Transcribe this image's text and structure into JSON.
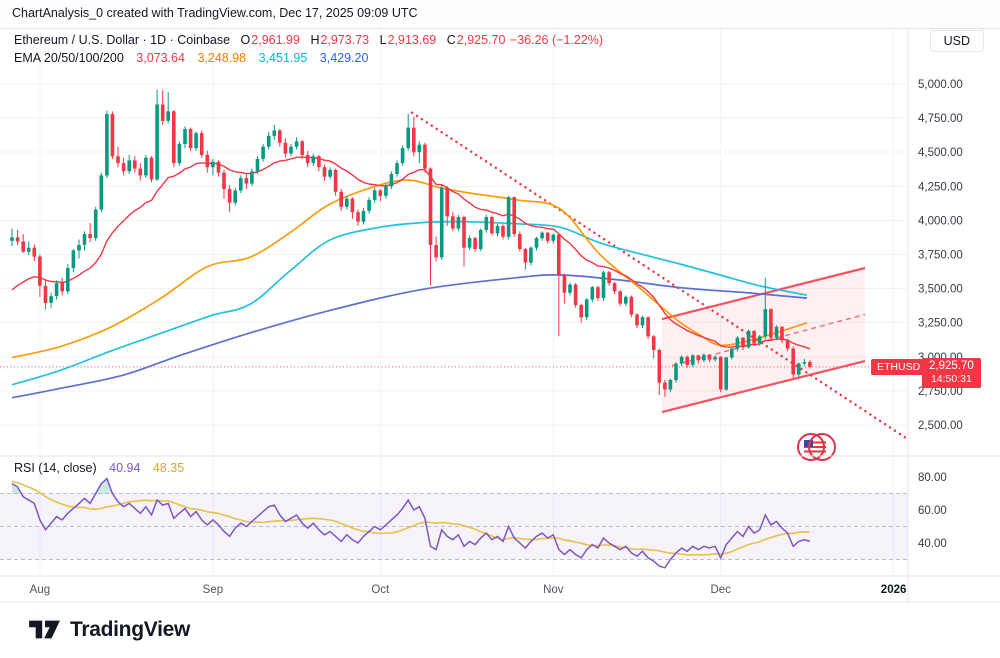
{
  "top_bar": {
    "title": "ChartAnalysis_0 created with TradingView.com, Dec 17, 2025 09:09 UTC"
  },
  "legend": {
    "symbol_line": "Ethereum / U.S. Dollar · 1D · Coinbase",
    "o_label": "O",
    "o": "2,961.99",
    "h_label": "H",
    "h": "2,973.73",
    "l_label": "L",
    "l": "2,913.69",
    "c_label": "C",
    "c": "2,925.70",
    "change": "−36.26 (−1.22%)"
  },
  "ema_legend": {
    "label": "EMA 20/50/100/200",
    "v20": "3,073.64",
    "v50": "3,248.98",
    "v100": "3,451.95",
    "v200": "3,429.20"
  },
  "rsi_legend": {
    "label": "RSI (14, close)",
    "value": "40.94",
    "ma": "48.35"
  },
  "axis": {
    "currency": "USD",
    "price_labels": [
      {
        "v": 5000,
        "t": "5,000.00"
      },
      {
        "v": 4750,
        "t": "4,750.00"
      },
      {
        "v": 4500,
        "t": "4,500.00"
      },
      {
        "v": 4250,
        "t": "4,250.00"
      },
      {
        "v": 4000,
        "t": "4,000.00"
      },
      {
        "v": 3750,
        "t": "3,750.00"
      },
      {
        "v": 3500,
        "t": "3,500.00"
      },
      {
        "v": 3250,
        "t": "3,250.00"
      },
      {
        "v": 3000,
        "t": "3,000.00"
      },
      {
        "v": 2750,
        "t": "2,750.00"
      },
      {
        "v": 2500,
        "t": "2,500.00"
      }
    ],
    "rsi_labels": [
      {
        "v": 80,
        "t": "80.00"
      },
      {
        "v": 60,
        "t": "60.00"
      },
      {
        "v": 40,
        "t": "40.00"
      }
    ],
    "months": [
      {
        "i": 5,
        "t": "Aug"
      },
      {
        "i": 36,
        "t": "Sep"
      },
      {
        "i": 66,
        "t": "Oct"
      },
      {
        "i": 97,
        "t": "Nov"
      },
      {
        "i": 127,
        "t": "Dec"
      },
      {
        "i": 158,
        "t": "2026",
        "b": 1
      }
    ]
  },
  "price_badge": {
    "symbol": "ETHUSD",
    "price": "2,925.70",
    "countdown": "14:50:31"
  },
  "footer": {
    "brand": "TradingView"
  },
  "colors": {
    "up": "#089981",
    "down": "#f23645",
    "ema20": "#f23645",
    "ema50": "#ff9800",
    "ema100": "#22c1dd",
    "ema200": "#5f6fd0",
    "rsi": "#7e57c2",
    "rsi_ma": "#e6c24a",
    "channel": "#f7525f",
    "channel_fill": "rgba(247,82,95,0.09)",
    "trend": "#f23645",
    "price_line": "#f23645",
    "grid": "#f0f3fa",
    "sep": "#e1e4ea",
    "axis_text": "#363a45",
    "month_text": "#51555e",
    "band": "rgba(126,87,194,0.08)",
    "dashed": "#a5a8b1",
    "over_fill": "rgba(8,153,129,0.22)"
  },
  "chart_data": {
    "type": "candlestick",
    "title": "Ethereum / U.S. Dollar · 1D · Coinbase",
    "ylim": [
      2500,
      5000
    ],
    "xlabels": [
      "Aug",
      "Sep",
      "Oct",
      "Nov",
      "Dec",
      "2026"
    ],
    "price_line": 2925.7,
    "ema20_period": 20,
    "ema20_seed": 3450,
    "candles": [
      [
        3850,
        3940,
        3810,
        3875
      ],
      [
        3875,
        3930,
        3820,
        3845
      ],
      [
        3845,
        3900,
        3760,
        3770
      ],
      [
        3770,
        3845,
        3745,
        3800
      ],
      [
        3800,
        3825,
        3700,
        3735
      ],
      [
        3735,
        3750,
        3440,
        3520
      ],
      [
        3520,
        3560,
        3350,
        3395
      ],
      [
        3395,
        3470,
        3360,
        3445
      ],
      [
        3445,
        3560,
        3420,
        3540
      ],
      [
        3540,
        3580,
        3450,
        3480
      ],
      [
        3480,
        3680,
        3460,
        3650
      ],
      [
        3650,
        3790,
        3620,
        3780
      ],
      [
        3780,
        3860,
        3720,
        3820
      ],
      [
        3820,
        3920,
        3780,
        3900
      ],
      [
        3900,
        3980,
        3840,
        3870
      ],
      [
        3870,
        4100,
        3850,
        4080
      ],
      [
        4080,
        4350,
        4060,
        4330
      ],
      [
        4330,
        4805,
        4310,
        4780
      ],
      [
        4780,
        4800,
        4450,
        4470
      ],
      [
        4470,
        4540,
        4390,
        4420
      ],
      [
        4420,
        4460,
        4330,
        4360
      ],
      [
        4360,
        4480,
        4340,
        4440
      ],
      [
        4440,
        4470,
        4350,
        4380
      ],
      [
        4380,
        4420,
        4290,
        4330
      ],
      [
        4330,
        4480,
        4310,
        4460
      ],
      [
        4460,
        4470,
        4280,
        4300
      ],
      [
        4300,
        4960,
        4290,
        4850
      ],
      [
        4850,
        4955,
        4700,
        4730
      ],
      [
        4730,
        4940,
        4710,
        4800
      ],
      [
        4800,
        4810,
        4390,
        4420
      ],
      [
        4420,
        4580,
        4400,
        4560
      ],
      [
        4560,
        4690,
        4530,
        4670
      ],
      [
        4670,
        4680,
        4510,
        4530
      ],
      [
        4530,
        4650,
        4510,
        4640
      ],
      [
        4640,
        4660,
        4460,
        4480
      ],
      [
        4480,
        4510,
        4350,
        4390
      ],
      [
        4390,
        4450,
        4330,
        4430
      ],
      [
        4430,
        4440,
        4320,
        4350
      ],
      [
        4350,
        4370,
        4160,
        4230
      ],
      [
        4230,
        4260,
        4060,
        4130
      ],
      [
        4130,
        4240,
        4110,
        4220
      ],
      [
        4220,
        4330,
        4200,
        4310
      ],
      [
        4310,
        4340,
        4230,
        4270
      ],
      [
        4270,
        4380,
        4250,
        4360
      ],
      [
        4360,
        4470,
        4340,
        4450
      ],
      [
        4450,
        4560,
        4430,
        4540
      ],
      [
        4540,
        4650,
        4520,
        4620
      ],
      [
        4620,
        4700,
        4590,
        4660
      ],
      [
        4660,
        4670,
        4540,
        4570
      ],
      [
        4570,
        4600,
        4460,
        4490
      ],
      [
        4490,
        4560,
        4470,
        4540
      ],
      [
        4540,
        4610,
        4520,
        4580
      ],
      [
        4580,
        4590,
        4450,
        4480
      ],
      [
        4480,
        4510,
        4390,
        4420
      ],
      [
        4420,
        4490,
        4400,
        4470
      ],
      [
        4470,
        4480,
        4360,
        4390
      ],
      [
        4390,
        4410,
        4290,
        4320
      ],
      [
        4320,
        4390,
        4300,
        4370
      ],
      [
        4370,
        4380,
        4180,
        4210
      ],
      [
        4210,
        4230,
        4070,
        4100
      ],
      [
        4100,
        4180,
        4080,
        4160
      ],
      [
        4160,
        4170,
        4010,
        4060
      ],
      [
        4060,
        4080,
        3960,
        3990
      ],
      [
        3990,
        4090,
        3970,
        4070
      ],
      [
        4070,
        4170,
        4050,
        4150
      ],
      [
        4150,
        4240,
        4130,
        4220
      ],
      [
        4220,
        4230,
        4140,
        4180
      ],
      [
        4180,
        4270,
        4160,
        4250
      ],
      [
        4250,
        4360,
        4230,
        4340
      ],
      [
        4340,
        4440,
        4320,
        4420
      ],
      [
        4420,
        4550,
        4400,
        4530
      ],
      [
        4530,
        4780,
        4510,
        4680
      ],
      [
        4680,
        4760,
        4470,
        4500
      ],
      [
        4500,
        4580,
        4420,
        4555
      ],
      [
        4555,
        4570,
        4350,
        4380
      ],
      [
        4380,
        4390,
        3526,
        3820
      ],
      [
        3820,
        3880,
        3700,
        3730
      ],
      [
        3730,
        4260,
        3710,
        4240
      ],
      [
        4240,
        4250,
        3960,
        4030
      ],
      [
        4030,
        4060,
        3920,
        3940
      ],
      [
        3940,
        4040,
        3920,
        4025
      ],
      [
        4025,
        4035,
        3660,
        3800
      ],
      [
        3800,
        3890,
        3780,
        3870
      ],
      [
        3870,
        3880,
        3770,
        3790
      ],
      [
        3790,
        3940,
        3775,
        3930
      ],
      [
        3930,
        4040,
        3910,
        4025
      ],
      [
        4025,
        4035,
        3890,
        3905
      ],
      [
        3905,
        3975,
        3885,
        3960
      ],
      [
        3960,
        3970,
        3860,
        3880
      ],
      [
        3880,
        4180,
        3860,
        4170
      ],
      [
        4170,
        4175,
        3880,
        3900
      ],
      [
        3900,
        3920,
        3770,
        3790
      ],
      [
        3790,
        3800,
        3640,
        3690
      ],
      [
        3690,
        3810,
        3670,
        3800
      ],
      [
        3800,
        3880,
        3780,
        3870
      ],
      [
        3870,
        3920,
        3850,
        3910
      ],
      [
        3910,
        3915,
        3830,
        3850
      ],
      [
        3850,
        3905,
        3830,
        3895
      ],
      [
        3895,
        3900,
        3150,
        3600
      ],
      [
        3600,
        3610,
        3390,
        3470
      ],
      [
        3470,
        3545,
        3450,
        3530
      ],
      [
        3530,
        3540,
        3360,
        3380
      ],
      [
        3380,
        3390,
        3250,
        3290
      ],
      [
        3290,
        3430,
        3270,
        3420
      ],
      [
        3420,
        3520,
        3400,
        3510
      ],
      [
        3510,
        3520,
        3410,
        3430
      ],
      [
        3430,
        3630,
        3410,
        3620
      ],
      [
        3620,
        3630,
        3520,
        3540
      ],
      [
        3540,
        3550,
        3460,
        3480
      ],
      [
        3480,
        3490,
        3370,
        3390
      ],
      [
        3390,
        3450,
        3370,
        3440
      ],
      [
        3440,
        3450,
        3290,
        3310
      ],
      [
        3310,
        3320,
        3210,
        3230
      ],
      [
        3230,
        3300,
        3210,
        3290
      ],
      [
        3290,
        3295,
        3130,
        3150
      ],
      [
        3150,
        3160,
        2990,
        3050
      ],
      [
        3050,
        3060,
        2720,
        2810
      ],
      [
        2810,
        2830,
        2706,
        2760
      ],
      [
        2760,
        2840,
        2740,
        2830
      ],
      [
        2830,
        2960,
        2810,
        2950
      ],
      [
        2950,
        3010,
        2930,
        3000
      ],
      [
        3000,
        3010,
        2920,
        2940
      ],
      [
        2940,
        3020,
        2925,
        3010
      ],
      [
        3010,
        3015,
        2950,
        2975
      ],
      [
        2975,
        3025,
        2960,
        3015
      ],
      [
        3015,
        3020,
        2960,
        2980
      ],
      [
        2980,
        3010,
        2965,
        3000
      ],
      [
        3000,
        3005,
        2740,
        2760
      ],
      [
        2760,
        3000,
        2750,
        2995
      ],
      [
        2995,
        3070,
        2980,
        3060
      ],
      [
        3060,
        3150,
        3040,
        3140
      ],
      [
        3140,
        3145,
        3050,
        3070
      ],
      [
        3070,
        3200,
        3060,
        3190
      ],
      [
        3190,
        3195,
        3080,
        3100
      ],
      [
        3100,
        3160,
        3080,
        3150
      ],
      [
        3150,
        3580,
        3130,
        3350
      ],
      [
        3350,
        3355,
        3120,
        3140
      ],
      [
        3140,
        3230,
        3120,
        3220
      ],
      [
        3220,
        3225,
        3100,
        3120
      ],
      [
        3120,
        3130,
        3040,
        3060
      ],
      [
        3060,
        3075,
        2840,
        2870
      ],
      [
        2870,
        2960,
        2855,
        2950
      ],
      [
        2950,
        2985,
        2935,
        2962
      ],
      [
        2962,
        2974,
        2914,
        2926
      ]
    ],
    "ema50_points": [
      [
        12,
        2995
      ],
      [
        60,
        3075
      ],
      [
        110,
        3215
      ],
      [
        160,
        3425
      ],
      [
        207,
        3660
      ],
      [
        250,
        3730
      ],
      [
        290,
        3910
      ],
      [
        330,
        4120
      ],
      [
        380,
        4260
      ],
      [
        410,
        4295
      ],
      [
        440,
        4240
      ],
      [
        470,
        4200
      ],
      [
        517,
        4150
      ],
      [
        560,
        4085
      ],
      [
        600,
        3750
      ],
      [
        642,
        3490
      ],
      [
        677,
        3270
      ],
      [
        700,
        3160
      ],
      [
        720,
        3085
      ],
      [
        750,
        3120
      ],
      [
        780,
        3185
      ],
      [
        807,
        3249
      ]
    ],
    "ema100_points": [
      [
        12,
        2795
      ],
      [
        60,
        2900
      ],
      [
        110,
        3040
      ],
      [
        160,
        3170
      ],
      [
        210,
        3300
      ],
      [
        250,
        3385
      ],
      [
        290,
        3630
      ],
      [
        330,
        3856
      ],
      [
        380,
        3950
      ],
      [
        425,
        3985
      ],
      [
        470,
        3990
      ],
      [
        517,
        3975
      ],
      [
        560,
        3950
      ],
      [
        600,
        3835
      ],
      [
        640,
        3755
      ],
      [
        680,
        3680
      ],
      [
        720,
        3600
      ],
      [
        760,
        3520
      ],
      [
        807,
        3452
      ]
    ],
    "ema200_points": [
      [
        12,
        2700
      ],
      [
        60,
        2768
      ],
      [
        123,
        2865
      ],
      [
        180,
        3010
      ],
      [
        250,
        3175
      ],
      [
        330,
        3340
      ],
      [
        423,
        3495
      ],
      [
        517,
        3580
      ],
      [
        560,
        3600
      ],
      [
        620,
        3563
      ],
      [
        683,
        3505
      ],
      [
        750,
        3468
      ],
      [
        807,
        3430
      ]
    ],
    "trendline": {
      "x1": 412,
      "p1": 4790,
      "x2": 905,
      "p2": 2410
    },
    "channel": {
      "x1": 662,
      "x2": 865,
      "lower1": 2595,
      "lower2": 2969,
      "upper1": 3277,
      "upper2": 3651,
      "mid1": 2936,
      "mid2": 3310
    },
    "event_icon": {
      "x": 816,
      "y": 447
    },
    "rsi": {
      "levels": [
        70,
        50,
        30
      ],
      "values": [
        76,
        74,
        68,
        66,
        64,
        54,
        48,
        52,
        56,
        54,
        58,
        61,
        64,
        67,
        64,
        70,
        76,
        79,
        70,
        65,
        62,
        64,
        61,
        58,
        62,
        57,
        66,
        63,
        64,
        55,
        58,
        61,
        56,
        59,
        54,
        51,
        54,
        51,
        47,
        44,
        49,
        52,
        50,
        53,
        56,
        59,
        62,
        63,
        57,
        53,
        55,
        57,
        52,
        49,
        52,
        48,
        45,
        47,
        44,
        41,
        45,
        42,
        40,
        44,
        47,
        50,
        48,
        51,
        54,
        57,
        61,
        66,
        60,
        62,
        55,
        38,
        36,
        48,
        44,
        42,
        45,
        38,
        41,
        39,
        43,
        46,
        42,
        44,
        41,
        50,
        43,
        40,
        37,
        41,
        44,
        46,
        43,
        45,
        36,
        33,
        36,
        33,
        31,
        36,
        39,
        37,
        43,
        40,
        38,
        36,
        38,
        34,
        32,
        35,
        31,
        29,
        26,
        25,
        30,
        34,
        37,
        35,
        38,
        36,
        38,
        37,
        38,
        31,
        39,
        43,
        47,
        44,
        50,
        46,
        48,
        57,
        51,
        53,
        49,
        46,
        38,
        41,
        42,
        40.94
      ],
      "ma_seed": [
        88,
        87,
        86,
        85,
        84,
        82,
        80,
        78,
        76,
        74,
        72,
        70,
        68,
        66
      ]
    }
  }
}
